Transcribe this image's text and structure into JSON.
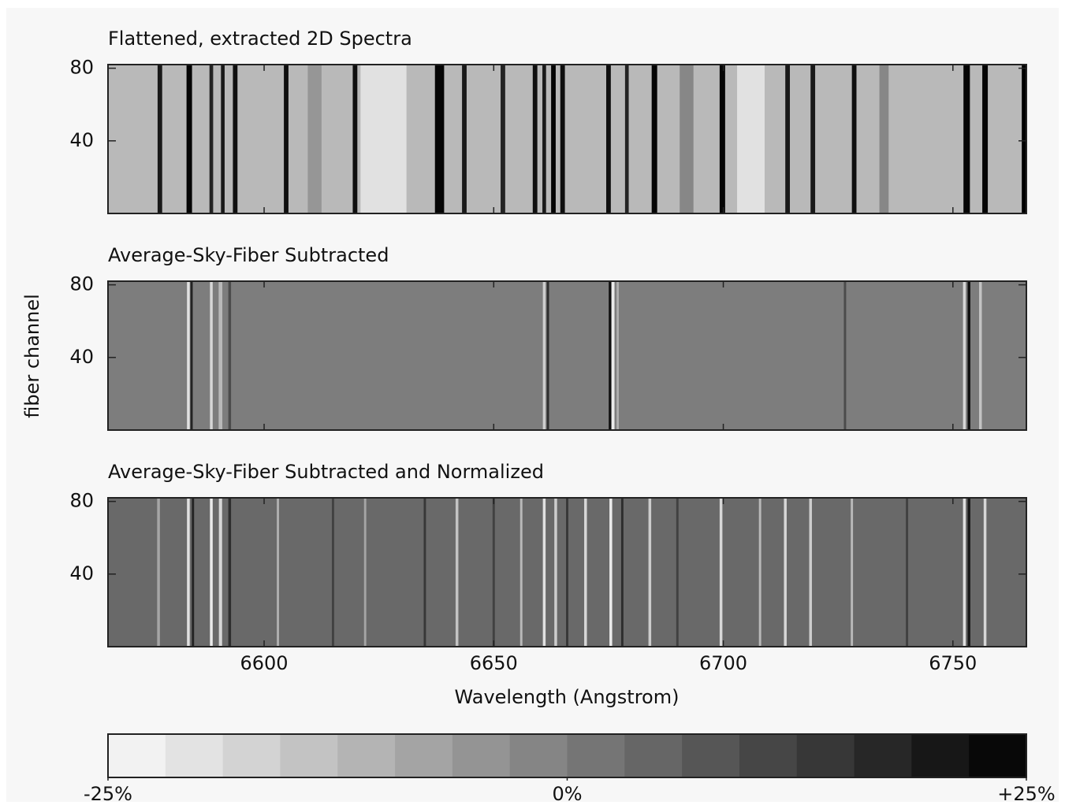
{
  "chart_data": {
    "type": "heatmap",
    "ylabel": "fiber channel",
    "xlabel": "Wavelength (Angstrom)",
    "xlim": [
      6566,
      6766
    ],
    "xticks": [
      6600,
      6650,
      6700,
      6750
    ],
    "ylim": [
      0,
      82
    ],
    "yticks": [
      40,
      80
    ],
    "panels": [
      {
        "title": "Flattened, extracted 2D Spectra",
        "background": -12,
        "stripes": [
          {
            "x": 6577.3,
            "width": 1.0,
            "value": 20
          },
          {
            "x": 6583.7,
            "width": 1.2,
            "value": 24
          },
          {
            "x": 6588.5,
            "width": 0.8,
            "value": 18
          },
          {
            "x": 6591.0,
            "width": 0.8,
            "value": 20
          },
          {
            "x": 6593.7,
            "width": 1.0,
            "value": 22
          },
          {
            "x": 6604.8,
            "width": 1.0,
            "value": 22
          },
          {
            "x": 6611.0,
            "width": 3.0,
            "value": -5
          },
          {
            "x": 6619.8,
            "width": 1.0,
            "value": 22
          },
          {
            "x": 6626.0,
            "width": 10.0,
            "value": -20
          },
          {
            "x": 6638.2,
            "width": 2.0,
            "value": 24
          },
          {
            "x": 6643.6,
            "width": 1.0,
            "value": 20
          },
          {
            "x": 6652.0,
            "width": 1.0,
            "value": 18
          },
          {
            "x": 6659.0,
            "width": 1.0,
            "value": 22
          },
          {
            "x": 6661.0,
            "width": 0.8,
            "value": 20
          },
          {
            "x": 6663.0,
            "width": 1.0,
            "value": 24
          },
          {
            "x": 6665.0,
            "width": 1.0,
            "value": 22
          },
          {
            "x": 6675.0,
            "width": 1.0,
            "value": 22
          },
          {
            "x": 6679.0,
            "width": 0.8,
            "value": 18
          },
          {
            "x": 6685.0,
            "width": 1.2,
            "value": 24
          },
          {
            "x": 6692.0,
            "width": 3.0,
            "value": -2
          },
          {
            "x": 6699.8,
            "width": 1.2,
            "value": 24
          },
          {
            "x": 6706.0,
            "width": 6.0,
            "value": -20
          },
          {
            "x": 6714.0,
            "width": 1.0,
            "value": 20
          },
          {
            "x": 6719.5,
            "width": 1.0,
            "value": 20
          },
          {
            "x": 6728.5,
            "width": 1.0,
            "value": 22
          },
          {
            "x": 6735.0,
            "width": 2.0,
            "value": -2
          },
          {
            "x": 6753.0,
            "width": 1.4,
            "value": 24
          },
          {
            "x": 6757.0,
            "width": 1.2,
            "value": 24
          },
          {
            "x": 6765.5,
            "width": 1.0,
            "value": 25
          }
        ]
      },
      {
        "title": "Average-Sky-Fiber Subtracted",
        "background": 0,
        "stripes": [
          {
            "x": 6583.5,
            "width": 0.6,
            "value": -20
          },
          {
            "x": 6584.2,
            "width": 0.5,
            "value": 18
          },
          {
            "x": 6588.5,
            "width": 0.6,
            "value": -18
          },
          {
            "x": 6590.5,
            "width": 0.8,
            "value": -12
          },
          {
            "x": 6592.5,
            "width": 0.6,
            "value": 10
          },
          {
            "x": 6661.0,
            "width": 0.6,
            "value": -16
          },
          {
            "x": 6661.8,
            "width": 0.5,
            "value": 16
          },
          {
            "x": 6675.3,
            "width": 0.5,
            "value": 22
          },
          {
            "x": 6676.0,
            "width": 0.6,
            "value": -22
          },
          {
            "x": 6677.0,
            "width": 0.5,
            "value": -10
          },
          {
            "x": 6726.5,
            "width": 0.5,
            "value": 10
          },
          {
            "x": 6752.5,
            "width": 0.6,
            "value": -18
          },
          {
            "x": 6753.5,
            "width": 0.6,
            "value": 22
          },
          {
            "x": 6756.0,
            "width": 0.6,
            "value": -14
          }
        ]
      },
      {
        "title": "Average-Sky-Fiber Subtracted and Normalized",
        "background": 4,
        "stripes": [
          {
            "x": 6577.0,
            "width": 0.6,
            "value": -8
          },
          {
            "x": 6583.5,
            "width": 0.6,
            "value": -20
          },
          {
            "x": 6584.5,
            "width": 0.5,
            "value": 18
          },
          {
            "x": 6588.5,
            "width": 0.6,
            "value": -22
          },
          {
            "x": 6590.5,
            "width": 0.7,
            "value": -18
          },
          {
            "x": 6592.5,
            "width": 0.6,
            "value": 16
          },
          {
            "x": 6603.0,
            "width": 0.5,
            "value": -10
          },
          {
            "x": 6615.0,
            "width": 0.5,
            "value": 12
          },
          {
            "x": 6622.0,
            "width": 0.5,
            "value": -8
          },
          {
            "x": 6635.0,
            "width": 0.5,
            "value": 14
          },
          {
            "x": 6642.0,
            "width": 0.6,
            "value": -14
          },
          {
            "x": 6650.0,
            "width": 0.5,
            "value": 12
          },
          {
            "x": 6656.0,
            "width": 0.5,
            "value": -12
          },
          {
            "x": 6661.0,
            "width": 0.6,
            "value": -20
          },
          {
            "x": 6663.5,
            "width": 0.6,
            "value": -16
          },
          {
            "x": 6666.0,
            "width": 0.5,
            "value": 14
          },
          {
            "x": 6670.0,
            "width": 0.6,
            "value": -18
          },
          {
            "x": 6675.5,
            "width": 0.6,
            "value": -22
          },
          {
            "x": 6678.0,
            "width": 0.5,
            "value": 16
          },
          {
            "x": 6684.0,
            "width": 0.6,
            "value": -16
          },
          {
            "x": 6690.0,
            "width": 0.5,
            "value": 12
          },
          {
            "x": 6699.5,
            "width": 0.6,
            "value": -18
          },
          {
            "x": 6708.0,
            "width": 0.5,
            "value": -12
          },
          {
            "x": 6713.5,
            "width": 0.6,
            "value": -18
          },
          {
            "x": 6719.0,
            "width": 0.6,
            "value": -16
          },
          {
            "x": 6728.0,
            "width": 0.5,
            "value": -12
          },
          {
            "x": 6740.0,
            "width": 0.5,
            "value": 12
          },
          {
            "x": 6752.5,
            "width": 0.6,
            "value": -20
          },
          {
            "x": 6753.5,
            "width": 0.6,
            "value": 20
          },
          {
            "x": 6757.0,
            "width": 0.6,
            "value": -18
          }
        ]
      }
    ],
    "colorbar": {
      "lim": [
        -25,
        25
      ],
      "levels": 16,
      "ticks": [
        {
          "value": -25,
          "label": "-25%"
        },
        {
          "value": 0,
          "label": "0%"
        },
        {
          "value": 25,
          "label": "+25%"
        }
      ]
    }
  }
}
